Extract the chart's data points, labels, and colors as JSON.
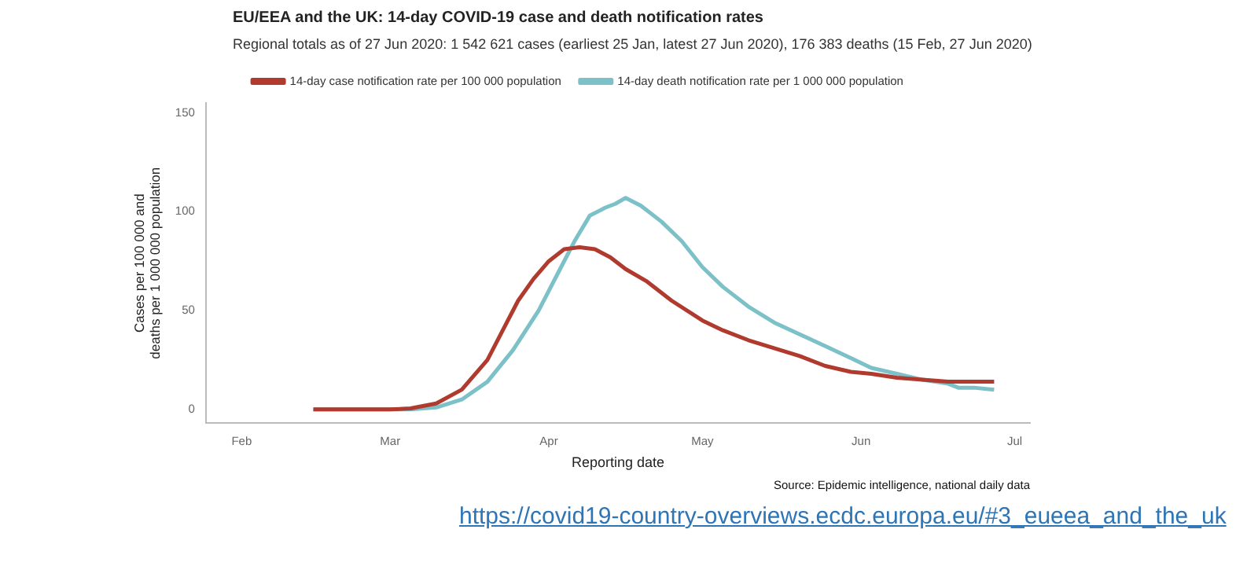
{
  "chart_data": {
    "type": "line",
    "title": "EU/EEA and the UK: 14-day COVID-19 case and death notification rates",
    "subtitle": "Regional totals as of 27 Jun 2020: 1 542 621 cases (earliest 25 Jan, latest 27 Jun 2020), 176 383 deaths (15 Feb, 27 Jun 2020)",
    "xlabel": "Reporting date",
    "ylabel": "Cases per 100 000 and\ndeaths per 1 000 000 population",
    "annotations": [
      "Source: Epidemic intelligence, national daily data",
      "https://covid19-country-overviews.ecdc.europa.eu/#3_eueea_and_the_uk"
    ],
    "xlim": [
      "2020-01-25",
      "2020-07-04"
    ],
    "xticks": [
      {
        "value": "2020-02-01",
        "label": "Feb"
      },
      {
        "value": "2020-03-01",
        "label": "Mar"
      },
      {
        "value": "2020-04-01",
        "label": "Apr"
      },
      {
        "value": "2020-05-01",
        "label": "May"
      },
      {
        "value": "2020-06-01",
        "label": "Jun"
      },
      {
        "value": "2020-07-01",
        "label": "Jul"
      }
    ],
    "ylim": [
      -7,
      155
    ],
    "yticks": [
      0,
      50,
      100,
      150
    ],
    "grid": false,
    "legend": "top",
    "marker": "none",
    "line_style": "solid",
    "series": [
      {
        "name": "14-day case notification rate per 100 000 population",
        "color": "#b03a2e",
        "x": [
          "2020-02-15",
          "2020-03-01",
          "2020-03-05",
          "2020-03-10",
          "2020-03-15",
          "2020-03-20",
          "2020-03-23",
          "2020-03-26",
          "2020-03-29",
          "2020-04-01",
          "2020-04-04",
          "2020-04-07",
          "2020-04-10",
          "2020-04-13",
          "2020-04-16",
          "2020-04-20",
          "2020-04-25",
          "2020-05-01",
          "2020-05-05",
          "2020-05-10",
          "2020-05-15",
          "2020-05-20",
          "2020-05-25",
          "2020-05-30",
          "2020-06-03",
          "2020-06-08",
          "2020-06-13",
          "2020-06-18",
          "2020-06-23",
          "2020-06-27"
        ],
        "values": [
          0,
          0,
          0.5,
          3,
          10,
          25,
          40,
          55,
          66,
          75,
          81,
          82,
          81,
          77,
          71,
          65,
          55,
          45,
          40,
          35,
          31,
          27,
          22,
          19,
          18,
          16,
          15,
          14,
          14,
          14
        ]
      },
      {
        "name": "14-day death notification rate per 1 000 000 population",
        "color": "#7cc0c8",
        "x": [
          "2020-02-15",
          "2020-03-05",
          "2020-03-10",
          "2020-03-15",
          "2020-03-20",
          "2020-03-25",
          "2020-03-30",
          "2020-04-03",
          "2020-04-06",
          "2020-04-09",
          "2020-04-12",
          "2020-04-14",
          "2020-04-16",
          "2020-04-19",
          "2020-04-23",
          "2020-04-27",
          "2020-05-01",
          "2020-05-05",
          "2020-05-10",
          "2020-05-15",
          "2020-05-20",
          "2020-05-25",
          "2020-05-30",
          "2020-06-03",
          "2020-06-08",
          "2020-06-13",
          "2020-06-18",
          "2020-06-20",
          "2020-06-23",
          "2020-06-27"
        ],
        "values": [
          0,
          0,
          1,
          5,
          14,
          30,
          50,
          70,
          85,
          98,
          102,
          104,
          107,
          103,
          95,
          85,
          72,
          62,
          52,
          44,
          38,
          32,
          26,
          21,
          18,
          15,
          13,
          11,
          11,
          10
        ]
      }
    ]
  }
}
